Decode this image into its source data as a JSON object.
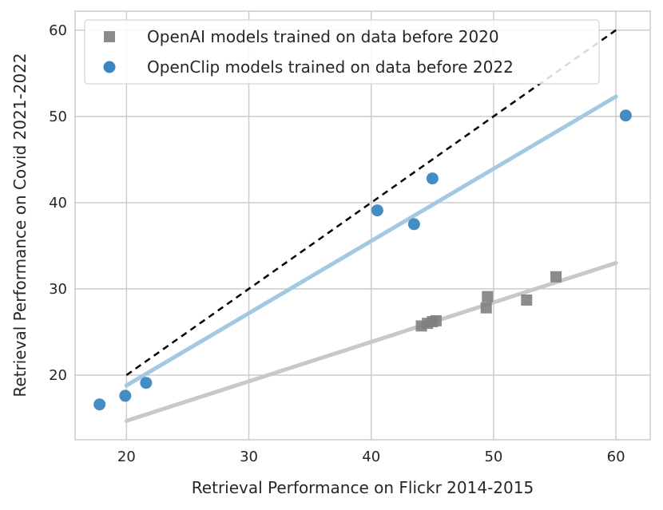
{
  "chart_data": {
    "type": "scatter",
    "xlabel": "Retrieval Performance on Flickr 2014-2015",
    "ylabel": "Retrieval Performance on Covid 2021-2022",
    "xlim": [
      15.8,
      62.8
    ],
    "ylim": [
      12.5,
      62.2
    ],
    "x_ticks": [
      20,
      30,
      40,
      50,
      60
    ],
    "y_ticks": [
      20,
      30,
      40,
      50,
      60
    ],
    "grid": true,
    "legend_position": "top-left",
    "series": [
      {
        "name": "OpenAI models trained on data before 2020",
        "marker": "square",
        "color": "#808080",
        "fit_color": "#c8c8c8",
        "points": [
          {
            "x": 44.1,
            "y": 25.7
          },
          {
            "x": 44.6,
            "y": 26.0
          },
          {
            "x": 45.0,
            "y": 26.2
          },
          {
            "x": 45.3,
            "y": 26.3
          },
          {
            "x": 49.4,
            "y": 27.8
          },
          {
            "x": 49.5,
            "y": 29.1
          },
          {
            "x": 52.7,
            "y": 28.7
          },
          {
            "x": 55.1,
            "y": 31.4
          }
        ],
        "fit": [
          {
            "x": 20,
            "y": 14.7
          },
          {
            "x": 60,
            "y": 33.0
          }
        ]
      },
      {
        "name": "OpenClip models trained on data before 2022",
        "marker": "circle",
        "color": "#3a87c0",
        "fit_color": "#a3c8e2",
        "points": [
          {
            "x": 17.8,
            "y": 16.6
          },
          {
            "x": 19.9,
            "y": 17.6
          },
          {
            "x": 21.6,
            "y": 19.1
          },
          {
            "x": 40.5,
            "y": 39.1
          },
          {
            "x": 43.5,
            "y": 37.5
          },
          {
            "x": 45.0,
            "y": 42.8
          },
          {
            "x": 60.8,
            "y": 50.1
          }
        ],
        "fit": [
          {
            "x": 20,
            "y": 18.8
          },
          {
            "x": 60,
            "y": 52.3
          }
        ]
      }
    ],
    "reference_line": {
      "style": "dashed",
      "color": "#000000",
      "from": {
        "x": 20,
        "y": 20
      },
      "to": {
        "x": 60,
        "y": 60
      }
    }
  }
}
